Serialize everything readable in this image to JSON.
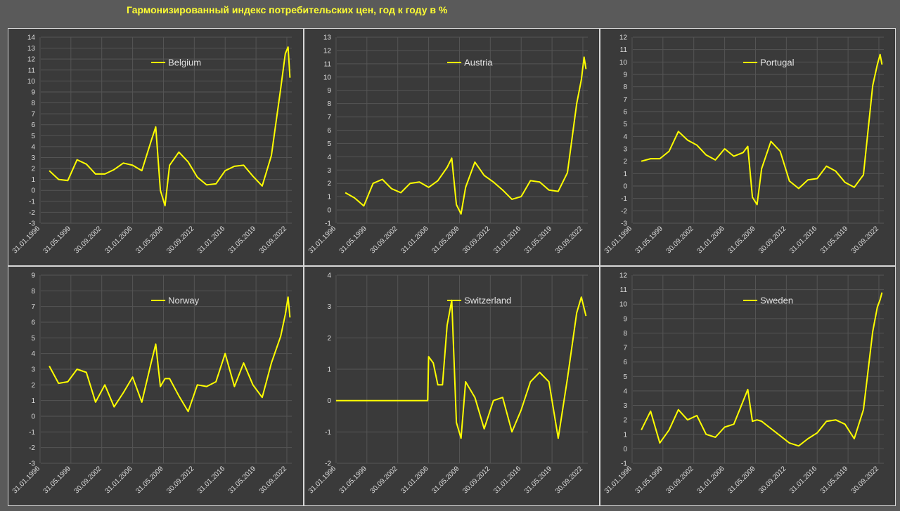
{
  "title": "Гармонизированный индекс потребительских цен, год к году в %",
  "colors": {
    "line": "#ffff00",
    "grid": "#555555",
    "background": "#3a3a3a",
    "border": "#d8d8d8"
  },
  "chart_data": [
    {
      "type": "line",
      "legend": "Belgium",
      "ylim": [
        -3,
        14
      ],
      "yticks": [
        -3,
        -2,
        -1,
        0,
        1,
        2,
        3,
        4,
        5,
        6,
        7,
        8,
        9,
        10,
        11,
        12,
        13,
        14
      ],
      "xticks": [
        "31.01.1996",
        "31.05.1999",
        "30.09.2002",
        "31.01.2006",
        "31.05.2009",
        "30.09.2012",
        "31.01.2016",
        "31.05.2019",
        "30.09.2022"
      ],
      "x": [
        1997,
        1998,
        1999,
        2000,
        2001,
        2002,
        2003,
        2004,
        2005,
        2006,
        2007,
        2008,
        2008.5,
        2009,
        2009.5,
        2010,
        2011,
        2012,
        2013,
        2014,
        2015,
        2016,
        2017,
        2018,
        2019,
        2020,
        2021,
        2022,
        2022.5,
        2022.8,
        2023
      ],
      "values": [
        1.8,
        1.0,
        0.9,
        2.8,
        2.4,
        1.5,
        1.5,
        1.9,
        2.5,
        2.3,
        1.8,
        4.5,
        5.8,
        0.0,
        -1.4,
        2.3,
        3.5,
        2.6,
        1.2,
        0.5,
        0.6,
        1.8,
        2.2,
        2.3,
        1.3,
        0.4,
        3.2,
        9.3,
        12.5,
        13.1,
        10.3
      ]
    },
    {
      "type": "line",
      "legend": "Austria",
      "ylim": [
        -1,
        13
      ],
      "yticks": [
        -1,
        0,
        1,
        2,
        3,
        4,
        5,
        6,
        7,
        8,
        9,
        10,
        11,
        12,
        13
      ],
      "xticks": [
        "31.01.1996",
        "31.05.1999",
        "30.09.2002",
        "31.01.2006",
        "31.05.2009",
        "30.09.2012",
        "31.01.2016",
        "31.05.2019",
        "30.09.2022"
      ],
      "x": [
        1997,
        1998,
        1999,
        2000,
        2001,
        2002,
        2003,
        2004,
        2005,
        2006,
        2007,
        2008,
        2008.5,
        2009,
        2009.5,
        2010,
        2011,
        2012,
        2013,
        2014,
        2015,
        2016,
        2017,
        2018,
        2019,
        2020,
        2021,
        2022,
        2022.5,
        2022.8,
        2023
      ],
      "values": [
        1.3,
        0.9,
        0.3,
        2.0,
        2.3,
        1.6,
        1.3,
        2.0,
        2.1,
        1.7,
        2.2,
        3.2,
        3.9,
        0.4,
        -0.3,
        1.7,
        3.6,
        2.6,
        2.1,
        1.5,
        0.8,
        1.0,
        2.2,
        2.1,
        1.5,
        1.4,
        2.8,
        8.0,
        9.8,
        11.5,
        10.6
      ]
    },
    {
      "type": "line",
      "legend": "Portugal",
      "ylim": [
        -3,
        12
      ],
      "yticks": [
        -3,
        -2,
        -1,
        0,
        1,
        2,
        3,
        4,
        5,
        6,
        7,
        8,
        9,
        10,
        11,
        12
      ],
      "xticks": [
        "31.01.1996",
        "31.05.1999",
        "30.09.2002",
        "31.01.2006",
        "31.05.2009",
        "30.09.2012",
        "31.01.2016",
        "31.05.2019",
        "30.09.2022"
      ],
      "x": [
        1997,
        1998,
        1999,
        2000,
        2001,
        2002,
        2003,
        2004,
        2005,
        2006,
        2007,
        2008,
        2008.5,
        2009,
        2009.5,
        2010,
        2011,
        2012,
        2013,
        2014,
        2015,
        2016,
        2017,
        2018,
        2019,
        2020,
        2021,
        2022,
        2022.5,
        2022.8,
        2023
      ],
      "values": [
        2.0,
        2.2,
        2.2,
        2.8,
        4.4,
        3.7,
        3.3,
        2.5,
        2.1,
        3.0,
        2.4,
        2.7,
        3.2,
        -0.9,
        -1.5,
        1.4,
        3.6,
        2.8,
        0.4,
        -0.2,
        0.5,
        0.6,
        1.6,
        1.2,
        0.3,
        -0.1,
        0.9,
        8.1,
        9.8,
        10.6,
        9.8
      ]
    },
    {
      "type": "line",
      "legend": "Norway",
      "ylim": [
        -3,
        9
      ],
      "yticks": [
        -3,
        -2,
        -1,
        0,
        1,
        2,
        3,
        4,
        5,
        6,
        7,
        8,
        9
      ],
      "xticks": [
        "31.01.1996",
        "31.05.1999",
        "30.09.2002",
        "31.01.2006",
        "31.05.2009",
        "30.09.2012",
        "31.01.2016",
        "31.05.2019",
        "30.09.2022"
      ],
      "x": [
        1997,
        1998,
        1999,
        2000,
        2001,
        2002,
        2003,
        2004,
        2005,
        2006,
        2007,
        2008,
        2008.5,
        2009,
        2009.5,
        2010,
        2011,
        2012,
        2013,
        2014,
        2015,
        2016,
        2017,
        2018,
        2019,
        2020,
        2021,
        2022,
        2022.5,
        2022.8,
        2023
      ],
      "values": [
        3.2,
        2.1,
        2.2,
        3.0,
        2.8,
        0.9,
        2.0,
        0.6,
        1.5,
        2.5,
        0.9,
        3.4,
        4.6,
        1.9,
        2.4,
        2.4,
        1.3,
        0.3,
        2.0,
        1.9,
        2.2,
        4.0,
        1.9,
        3.4,
        2.0,
        1.2,
        3.4,
        5.1,
        6.5,
        7.6,
        6.3
      ]
    },
    {
      "type": "line",
      "legend": "Switzerland",
      "ylim": [
        -2,
        4
      ],
      "yticks": [
        -2,
        -1,
        0,
        1,
        2,
        3,
        4
      ],
      "xticks": [
        "31.01.1996",
        "31.05.1999",
        "30.09.2002",
        "31.01.2006",
        "31.05.2009",
        "30.09.2012",
        "31.01.2016",
        "31.05.2019",
        "30.09.2022"
      ],
      "x": [
        1996,
        1998,
        2000,
        2002,
        2004,
        2005.9,
        2006,
        2006.5,
        2007,
        2007.5,
        2008,
        2008.5,
        2009,
        2009.5,
        2010,
        2011,
        2012,
        2013,
        2014,
        2015,
        2016,
        2017,
        2018,
        2019,
        2020,
        2021,
        2022,
        2022.5,
        2023
      ],
      "values": [
        0,
        0,
        0,
        0,
        0,
        0,
        1.4,
        1.2,
        0.5,
        0.5,
        2.4,
        3.2,
        -0.7,
        -1.2,
        0.6,
        0.1,
        -0.9,
        0.0,
        0.1,
        -1.0,
        -0.3,
        0.6,
        0.9,
        0.6,
        -1.2,
        0.7,
        2.8,
        3.3,
        2.7
      ]
    },
    {
      "type": "line",
      "legend": "Sweden",
      "ylim": [
        -1,
        12
      ],
      "yticks": [
        -1,
        0,
        1,
        2,
        3,
        4,
        5,
        6,
        7,
        8,
        9,
        10,
        11,
        12
      ],
      "xticks": [
        "31.01.1996",
        "31.05.1999",
        "30.09.2002",
        "31.01.2006",
        "31.05.2009",
        "30.09.2012",
        "31.01.2016",
        "31.05.2019",
        "30.09.2022"
      ],
      "x": [
        1997,
        1998,
        1999,
        2000,
        2001,
        2002,
        2003,
        2004,
        2005,
        2006,
        2007,
        2008,
        2008.5,
        2009,
        2009.5,
        2010,
        2011,
        2012,
        2013,
        2014,
        2015,
        2016,
        2017,
        2018,
        2019,
        2020,
        2021,
        2022,
        2022.5,
        2022.8,
        2023
      ],
      "values": [
        1.3,
        2.6,
        0.4,
        1.3,
        2.7,
        2.0,
        2.3,
        1.0,
        0.8,
        1.5,
        1.7,
        3.3,
        4.1,
        1.9,
        2.0,
        1.9,
        1.4,
        0.9,
        0.4,
        0.2,
        0.7,
        1.1,
        1.9,
        2.0,
        1.7,
        0.7,
        2.7,
        8.1,
        9.8,
        10.3,
        10.8
      ]
    }
  ]
}
